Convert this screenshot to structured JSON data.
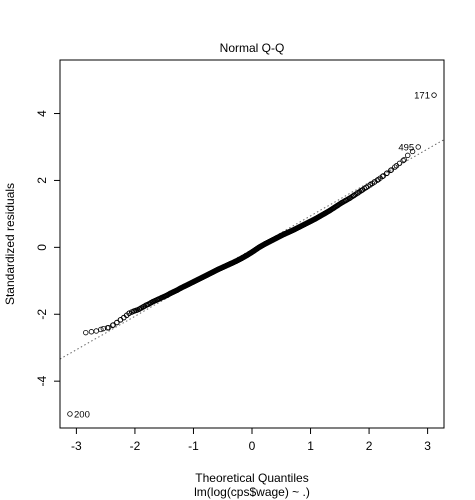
{
  "chart_data": {
    "type": "scatter",
    "title": "Normal Q-Q",
    "xlabel": "Theoretical Quantiles",
    "ylabel": "Standardized residuals",
    "caption": "lm(log(cps$wage) ~ .)",
    "xlim": [
      -3.28,
      3.28
    ],
    "ylim": [
      -5.4,
      5.6
    ],
    "xticks": [
      -3,
      -2,
      -1,
      0,
      1,
      2,
      3
    ],
    "xtick_labels": [
      "-3",
      "-2",
      "-1",
      "0",
      "1",
      "2",
      "3"
    ],
    "yticks": [
      -4,
      -2,
      0,
      2,
      4
    ],
    "ytick_labels": [
      "-4",
      "-2",
      "0",
      "2",
      "4"
    ],
    "grid": false,
    "reference_line": {
      "slope": 1.0,
      "intercept": -0.06,
      "style": "dotted"
    },
    "sample_sd": 0.96,
    "n_points": 534,
    "points": {
      "x": [
        -3.11,
        -2.84,
        -2.66,
        -2.54,
        -2.45,
        -2.37,
        -2.31,
        -2.25,
        -2.19,
        -2.14,
        -2.1,
        -2.05,
        -2.01,
        -1.97,
        -1.93,
        -1.89,
        -1.85,
        -1.81,
        -1.77,
        -1.73,
        -1.69,
        -1.65,
        -1.6,
        -1.55,
        -1.5,
        -1.45,
        -1.4,
        -1.34,
        -1.28,
        -1.22,
        -1.15,
        -1.08,
        -1.0,
        -0.92,
        -0.84,
        -0.76,
        -0.67,
        -0.58,
        -0.48,
        -0.38,
        -0.28,
        -0.18,
        -0.08,
        0.02,
        0.12,
        0.22,
        0.32,
        0.42,
        0.52,
        0.62,
        0.72,
        0.81,
        0.9,
        0.99,
        1.08,
        1.16,
        1.24,
        1.32,
        1.39,
        1.46,
        1.53,
        1.6,
        1.67,
        1.74,
        1.81,
        1.88,
        1.95,
        2.02,
        2.09,
        2.16,
        2.23,
        2.3,
        2.37,
        2.44,
        2.52,
        2.6,
        2.66,
        2.84,
        3.11
      ],
      "y": [
        -4.98,
        -2.55,
        -2.5,
        -2.43,
        -2.4,
        -2.32,
        -2.25,
        -2.17,
        -2.1,
        -2.03,
        -1.97,
        -1.93,
        -1.9,
        -1.88,
        -1.85,
        -1.81,
        -1.77,
        -1.73,
        -1.7,
        -1.66,
        -1.62,
        -1.59,
        -1.55,
        -1.51,
        -1.47,
        -1.43,
        -1.38,
        -1.33,
        -1.28,
        -1.22,
        -1.16,
        -1.1,
        -1.03,
        -0.96,
        -0.89,
        -0.82,
        -0.74,
        -0.66,
        -0.58,
        -0.5,
        -0.42,
        -0.33,
        -0.23,
        -0.12,
        0.0,
        0.1,
        0.19,
        0.28,
        0.37,
        0.45,
        0.53,
        0.61,
        0.69,
        0.77,
        0.85,
        0.93,
        1.01,
        1.09,
        1.17,
        1.25,
        1.33,
        1.4,
        1.47,
        1.55,
        1.63,
        1.71,
        1.79,
        1.87,
        1.95,
        2.03,
        2.12,
        2.21,
        2.3,
        2.4,
        2.51,
        2.62,
        2.75,
        3.0,
        4.55
      ]
    },
    "labeled_points": [
      {
        "label": "171",
        "x": 3.11,
        "y": 4.55,
        "side": "left"
      },
      {
        "label": "495",
        "x": 2.84,
        "y": 3.0,
        "side": "left"
      },
      {
        "label": "200",
        "x": -3.11,
        "y": -4.98,
        "side": "right"
      }
    ]
  }
}
